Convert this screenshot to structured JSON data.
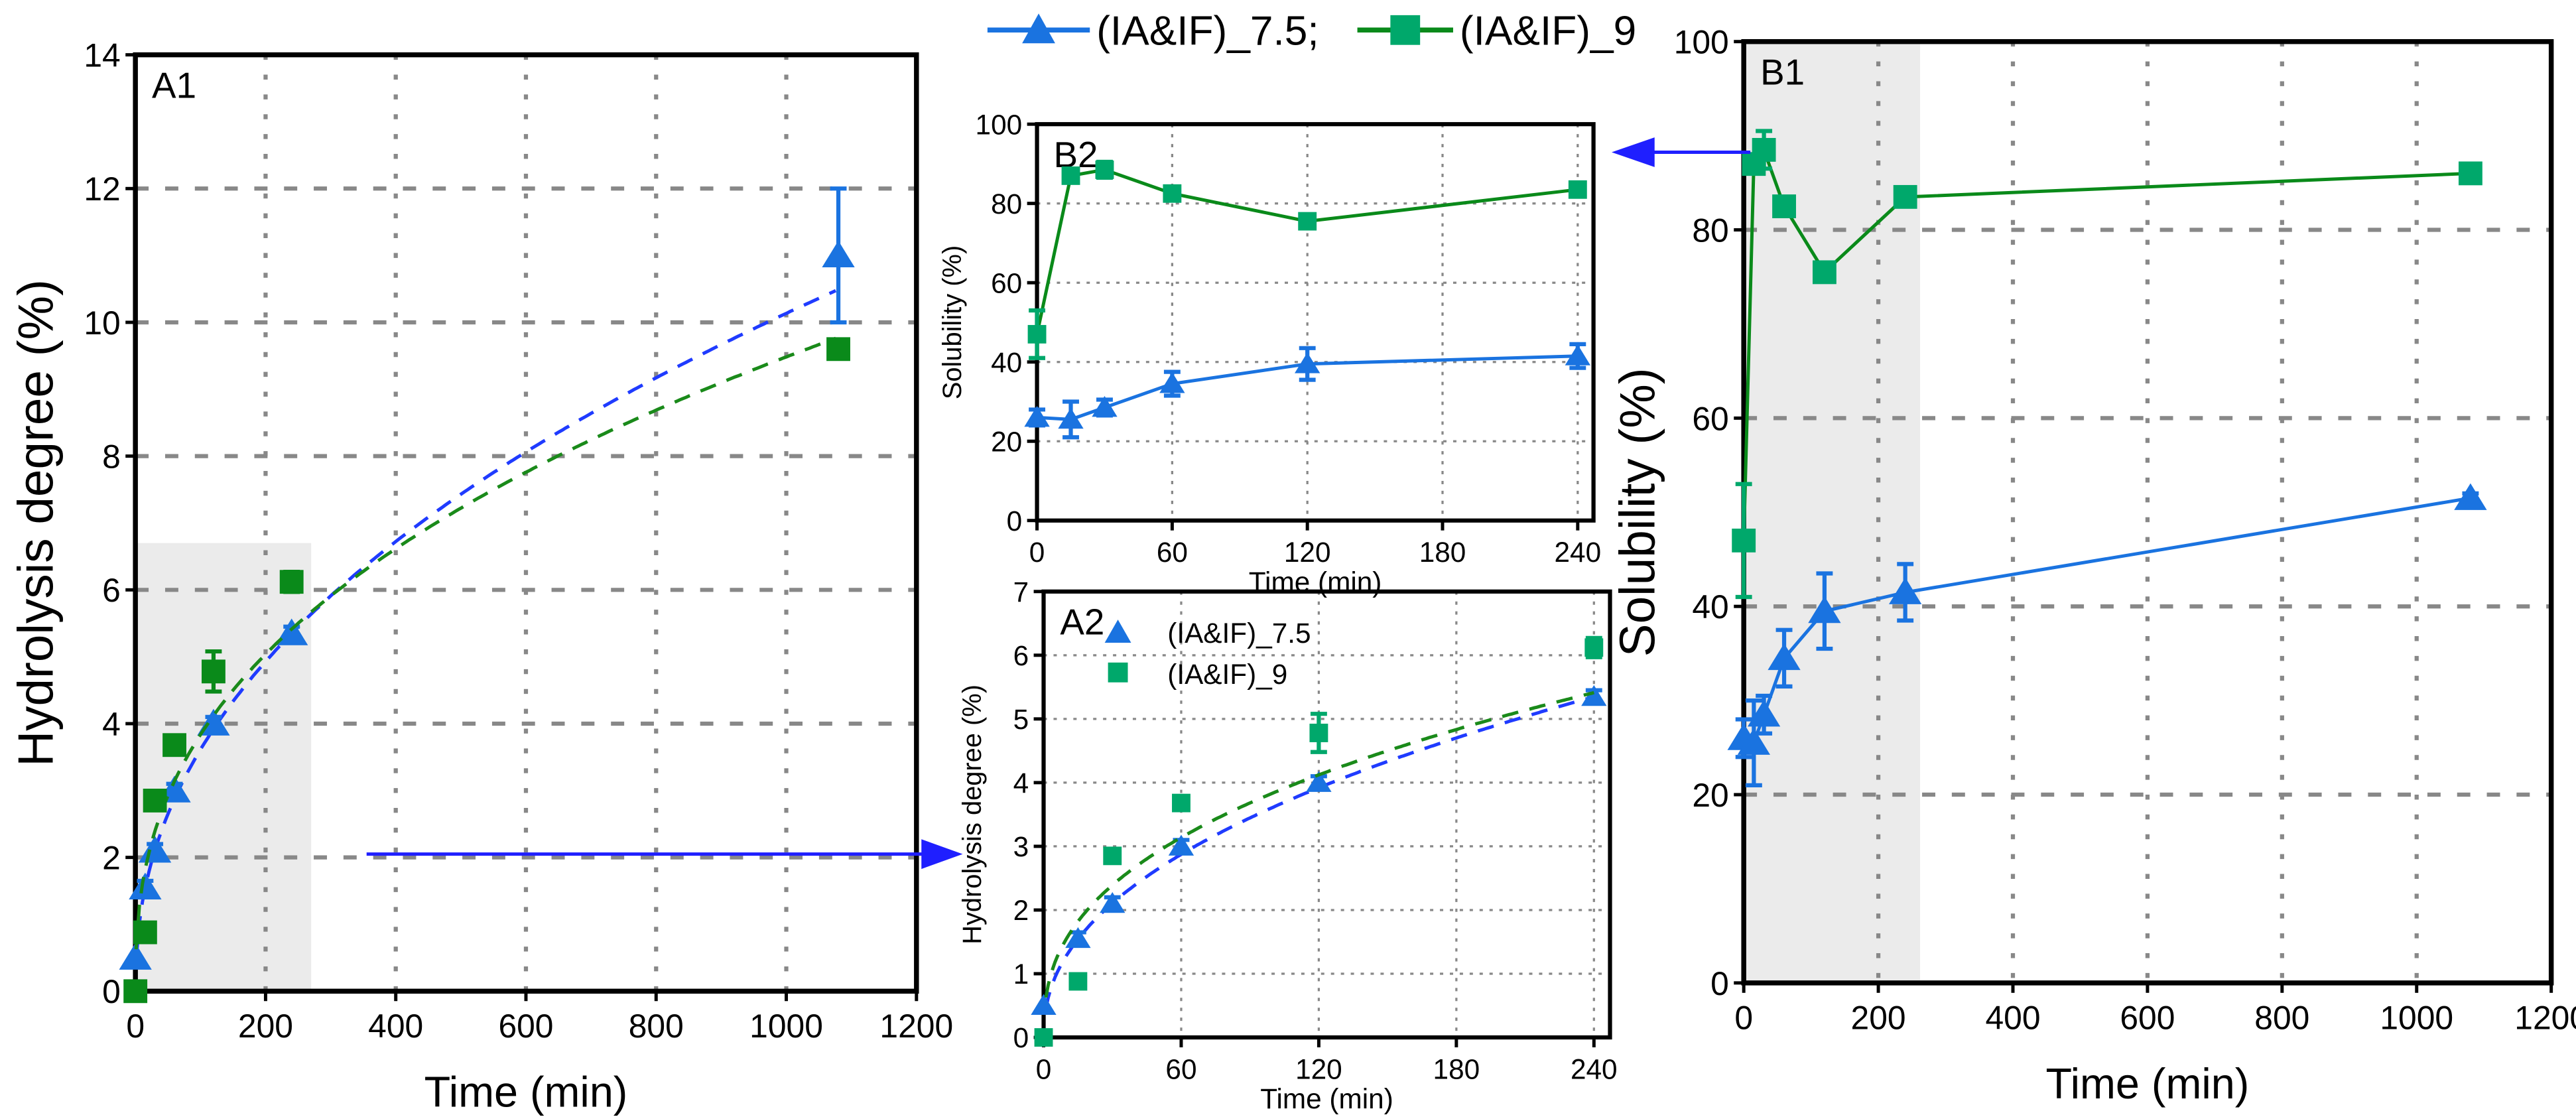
{
  "colors": {
    "s75": "#1a73e0",
    "s9": "#00a86b",
    "s9dark": "#0a8a1a",
    "fit75": "#1f3bff",
    "fit9": "#1a8a1a",
    "arrow": "#1f1fff",
    "shade": "#ebebeb"
  },
  "top_legend": {
    "s75": "(IA&IF)_7.5;",
    "s9": "(IA&IF)_9"
  },
  "chart_data": [
    {
      "id": "A1",
      "type": "scatter",
      "title": "A1",
      "xlabel": "Time (min)",
      "ylabel": "Hydrolysis degree (%)",
      "xlim": [
        0,
        1200
      ],
      "ylim": [
        0,
        14
      ],
      "xticks": [
        "0",
        "200",
        "400",
        "600",
        "800",
        "1000",
        "1200"
      ],
      "yticks": [
        "0",
        "2",
        "4",
        "6",
        "8",
        "10",
        "12",
        "14"
      ],
      "grid": true,
      "x": [
        0,
        15,
        30,
        60,
        120,
        240,
        1080
      ],
      "series": [
        {
          "name": "(IA&IF)_7.5",
          "values": [
            0.5,
            1.55,
            2.1,
            3.0,
            4.0,
            5.35,
            11.0
          ],
          "errors": [
            0,
            0.1,
            0.1,
            0.1,
            0.1,
            0.1,
            1.0
          ],
          "fit": {
            "a": 0.459,
            "b": 0.448
          }
        },
        {
          "name": "(IA&IF)_9",
          "values": [
            0,
            0.88,
            2.85,
            3.68,
            4.78,
            6.12,
            9.6
          ],
          "errors": [
            0,
            0.05,
            0.05,
            0.05,
            0.3,
            0.15,
            0.05
          ],
          "fit": {
            "a": 0.628,
            "b": 0.393
          }
        }
      ],
      "shaded_region": {
        "x": [
          0,
          270
        ],
        "y": [
          0,
          6.7
        ]
      }
    },
    {
      "id": "B2",
      "type": "line",
      "title": "B2",
      "xlabel": "Time (min)",
      "ylabel": "Solubility (%)",
      "xlim": [
        0,
        247
      ],
      "ylim": [
        0,
        100
      ],
      "xticks": [
        "0",
        "60",
        "120",
        "180",
        "240"
      ],
      "yticks": [
        "0",
        "20",
        "40",
        "60",
        "80",
        "100"
      ],
      "grid": true,
      "x": [
        0,
        15,
        30,
        60,
        120,
        240
      ],
      "series": [
        {
          "name": "(IA&IF)_7.5",
          "values": [
            26,
            25.5,
            28.5,
            34.5,
            39.5,
            41.5
          ],
          "errors": [
            2,
            4.5,
            2,
            3,
            4,
            3
          ]
        },
        {
          "name": "(IA&IF)_9",
          "values": [
            47,
            87,
            88.5,
            82.5,
            75.5,
            83.5
          ],
          "errors": [
            6,
            1,
            2,
            1,
            0.5,
            0.5
          ]
        }
      ]
    },
    {
      "id": "A2",
      "type": "scatter",
      "title": "A2",
      "xlabel": "Time (min)",
      "ylabel": "Hydrolysis degree (%)",
      "xlim": [
        0,
        247
      ],
      "ylim": [
        0,
        7
      ],
      "xticks": [
        "0",
        "60",
        "120",
        "180",
        "240"
      ],
      "yticks": [
        "0",
        "1",
        "2",
        "3",
        "4",
        "5",
        "6",
        "7"
      ],
      "grid": true,
      "legend": [
        "(IA&IF)_7.5",
        "(IA&IF)_9"
      ],
      "x": [
        0,
        15,
        30,
        60,
        120,
        240
      ],
      "series": [
        {
          "name": "(IA&IF)_7.5",
          "values": [
            0.5,
            1.55,
            2.1,
            3.0,
            4.0,
            5.35
          ],
          "errors": [
            0,
            0.1,
            0.1,
            0.1,
            0.1,
            0.1
          ],
          "fit": {
            "a": 0.459,
            "b": 0.448
          }
        },
        {
          "name": "(IA&IF)_9",
          "values": [
            0,
            0.88,
            2.85,
            3.68,
            4.78,
            6.12
          ],
          "errors": [
            0,
            0.05,
            0.05,
            0.05,
            0.3,
            0.15
          ],
          "fit": {
            "a": 0.628,
            "b": 0.393
          }
        }
      ]
    },
    {
      "id": "B1",
      "type": "line",
      "title": "B1",
      "xlabel": "Time (min)",
      "ylabel": "Solubility (%)",
      "xlim": [
        0,
        1200
      ],
      "ylim": [
        0,
        100
      ],
      "xticks": [
        "0",
        "200",
        "400",
        "600",
        "800",
        "1000",
        "1200"
      ],
      "yticks": [
        "0",
        "20",
        "40",
        "60",
        "80",
        "100"
      ],
      "grid": true,
      "x": [
        0,
        15,
        30,
        60,
        120,
        240,
        1080
      ],
      "series": [
        {
          "name": "(IA&IF)_7.5",
          "values": [
            26,
            25.5,
            28.5,
            34.5,
            39.5,
            41.5,
            51.5
          ],
          "errors": [
            2,
            4.5,
            2,
            3,
            4,
            3,
            0.5
          ]
        },
        {
          "name": "(IA&IF)_9",
          "values": [
            47,
            87,
            88.5,
            82.5,
            75.5,
            83.5,
            86
          ],
          "errors": [
            6,
            1,
            2,
            1,
            0.5,
            0.5,
            1
          ]
        }
      ],
      "shaded_region": {
        "x": [
          0,
          262
        ],
        "y": [
          0,
          100
        ]
      }
    }
  ]
}
